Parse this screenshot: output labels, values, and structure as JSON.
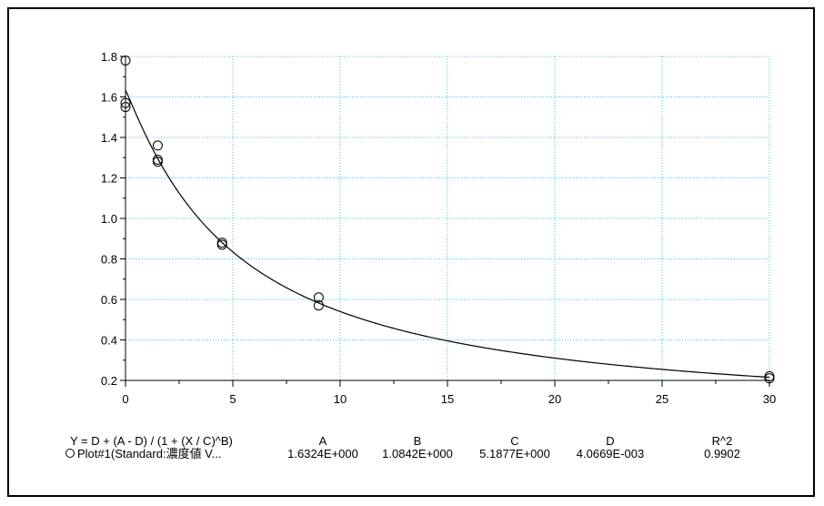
{
  "chart_data": {
    "type": "scatter",
    "title": "",
    "xlabel": "",
    "ylabel": "",
    "xlim": [
      0,
      30
    ],
    "ylim": [
      0.2,
      1.8
    ],
    "x_ticks": [
      "0",
      "5",
      "10",
      "15",
      "20",
      "25",
      "30"
    ],
    "y_ticks": [
      "0.2",
      "0.4",
      "0.6",
      "0.8",
      "1.0",
      "1.2",
      "1.4",
      "1.6",
      "1.8"
    ],
    "grid": true,
    "grid_color": "#33c8e0",
    "series": [
      {
        "points": [
          {
            "x": 0,
            "y": 1.78
          },
          {
            "x": 0,
            "y": 1.57
          },
          {
            "x": 0,
            "y": 1.55
          },
          {
            "x": 1.5,
            "y": 1.36
          },
          {
            "x": 1.5,
            "y": 1.29
          },
          {
            "x": 1.5,
            "y": 1.28
          },
          {
            "x": 4.5,
            "y": 0.88
          },
          {
            "x": 4.5,
            "y": 0.87
          },
          {
            "x": 9,
            "y": 0.61
          },
          {
            "x": 9,
            "y": 0.57
          },
          {
            "x": 30,
            "y": 0.22
          },
          {
            "x": 30,
            "y": 0.21
          }
        ]
      }
    ],
    "fit": {
      "equation": "Y = D + (A - D) / (1 + (X / C)^B)",
      "headers": [
        "A",
        "B",
        "C",
        "D",
        "R^2"
      ],
      "label": "Plot#1(Standard:濃度値 V...",
      "values": [
        "1.6324E+000",
        "1.0842E+000",
        "5.1877E+000",
        "4.0669E-003",
        "0.9902"
      ],
      "A": 1.6324,
      "B": 1.0842,
      "C": 5.1877,
      "D": 0.0040669
    }
  }
}
